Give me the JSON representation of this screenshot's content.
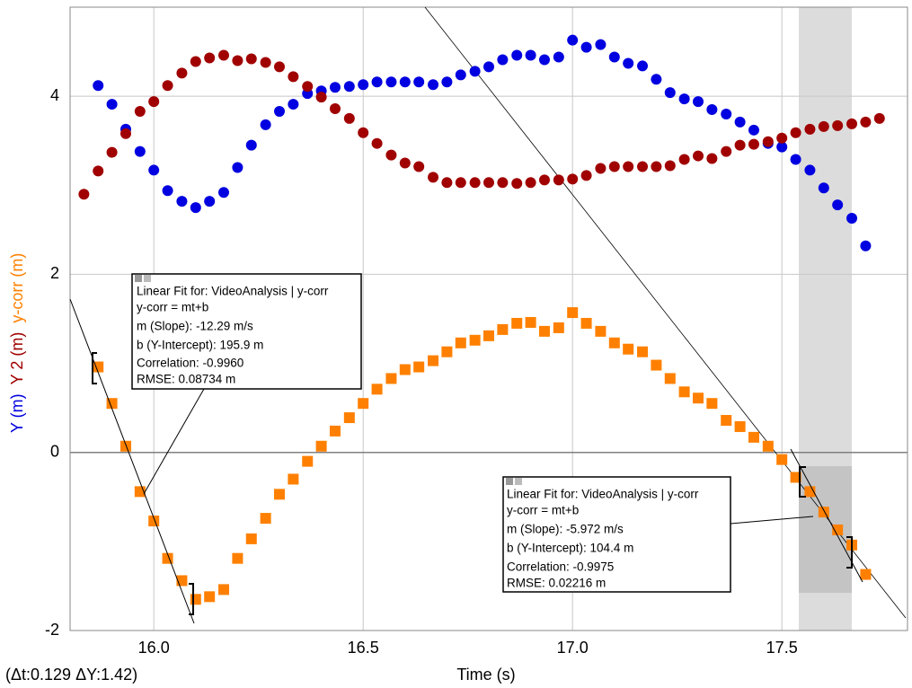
{
  "chart_data": {
    "type": "scatter",
    "x_label": "Time (s)",
    "status": "(Δt:0.129 ΔY:1.42)",
    "x": [
      15.833,
      15.867,
      15.9,
      15.933,
      15.967,
      16.0,
      16.033,
      16.067,
      16.1,
      16.133,
      16.167,
      16.2,
      16.233,
      16.267,
      16.3,
      16.333,
      16.367,
      16.4,
      16.433,
      16.467,
      16.5,
      16.533,
      16.567,
      16.6,
      16.633,
      16.667,
      16.7,
      16.733,
      16.767,
      16.8,
      16.833,
      16.867,
      16.9,
      16.933,
      16.967,
      17.0,
      17.033,
      17.067,
      17.1,
      17.133,
      17.167,
      17.2,
      17.233,
      17.267,
      17.3,
      17.333,
      17.367,
      17.4,
      17.433,
      17.467,
      17.5,
      17.533,
      17.567,
      17.6,
      17.633,
      17.667,
      17.7,
      17.733
    ],
    "series": [
      {
        "name": "Y (m)",
        "color": "#0000e0",
        "marker": "circle",
        "values": [
          null,
          4.12,
          3.91,
          3.63,
          3.38,
          3.17,
          2.94,
          2.82,
          2.75,
          2.82,
          2.92,
          3.2,
          3.45,
          3.68,
          3.83,
          3.91,
          4.03,
          4.06,
          4.1,
          4.11,
          4.13,
          4.16,
          4.16,
          4.16,
          4.16,
          4.13,
          4.16,
          4.24,
          4.28,
          4.33,
          4.41,
          4.46,
          4.46,
          4.41,
          4.44,
          4.63,
          4.55,
          4.58,
          4.44,
          4.37,
          4.34,
          4.19,
          4.04,
          3.97,
          3.94,
          3.85,
          3.8,
          3.71,
          3.62,
          3.47,
          3.43,
          3.29,
          3.17,
          2.97,
          2.78,
          2.63,
          2.32,
          null
        ]
      },
      {
        "name": "Y 2 (m)",
        "color": "#a00000",
        "marker": "circle",
        "values": [
          2.9,
          3.16,
          3.37,
          3.58,
          3.83,
          3.94,
          4.12,
          4.26,
          4.39,
          4.43,
          4.46,
          4.4,
          4.42,
          4.38,
          4.33,
          4.22,
          4.11,
          3.99,
          3.86,
          3.75,
          3.59,
          3.47,
          3.34,
          3.25,
          3.21,
          3.09,
          3.03,
          3.03,
          3.03,
          3.03,
          3.03,
          3.02,
          3.03,
          3.06,
          3.06,
          3.07,
          3.11,
          3.19,
          3.21,
          3.21,
          3.21,
          3.21,
          3.22,
          3.29,
          3.33,
          3.3,
          3.38,
          3.45,
          3.46,
          3.49,
          3.53,
          3.59,
          3.63,
          3.66,
          3.67,
          3.69,
          3.71,
          3.75
        ]
      },
      {
        "name": "y-corr (m)",
        "color": "#ff8000",
        "marker": "square",
        "values": [
          null,
          0.96,
          0.55,
          0.07,
          -0.44,
          -0.77,
          -1.19,
          -1.44,
          -1.65,
          -1.62,
          -1.54,
          -1.19,
          -0.97,
          -0.74,
          -0.47,
          -0.3,
          -0.1,
          0.07,
          0.24,
          0.39,
          0.55,
          0.71,
          0.83,
          0.93,
          0.96,
          1.03,
          1.13,
          1.23,
          1.26,
          1.31,
          1.38,
          1.45,
          1.46,
          1.36,
          1.4,
          1.57,
          1.45,
          1.36,
          1.23,
          1.16,
          1.13,
          0.98,
          0.83,
          0.68,
          0.61,
          0.55,
          0.36,
          0.29,
          0.17,
          0.07,
          -0.08,
          -0.28,
          -0.44,
          -0.67,
          -0.87,
          -1.04,
          -1.37,
          null
        ]
      }
    ],
    "xlim": [
      15.8,
      17.8
    ],
    "ylim": [
      -2,
      5
    ],
    "xticks": [
      {
        "value": 16,
        "label": "16.0"
      },
      {
        "value": 16.5,
        "label": "16.5"
      },
      {
        "value": 17,
        "label": "17.0"
      },
      {
        "value": 17.5,
        "label": "17.5"
      }
    ],
    "yticks": [
      -2,
      0,
      2,
      4
    ],
    "grid": true,
    "annotations": [
      {
        "title": "Linear Fit for: VideoAnalysis | y-corr",
        "lines": [
          "y-corr = mt+b",
          "m (Slope): -12.29 m/s",
          "b (Y-Intercept): 195.9 m",
          "Correlation: -0.9960",
          "RMSE: 0.08734 m"
        ]
      },
      {
        "title": "Linear Fit for: VideoAnalysis | y-corr",
        "lines": [
          "y-corr = mt+b",
          "m (Slope): -5.972 m/s",
          "b (Y-Intercept): 104.4 m",
          "Correlation: -0.9975",
          "RMSE: 0.02216 m"
        ]
      }
    ]
  }
}
